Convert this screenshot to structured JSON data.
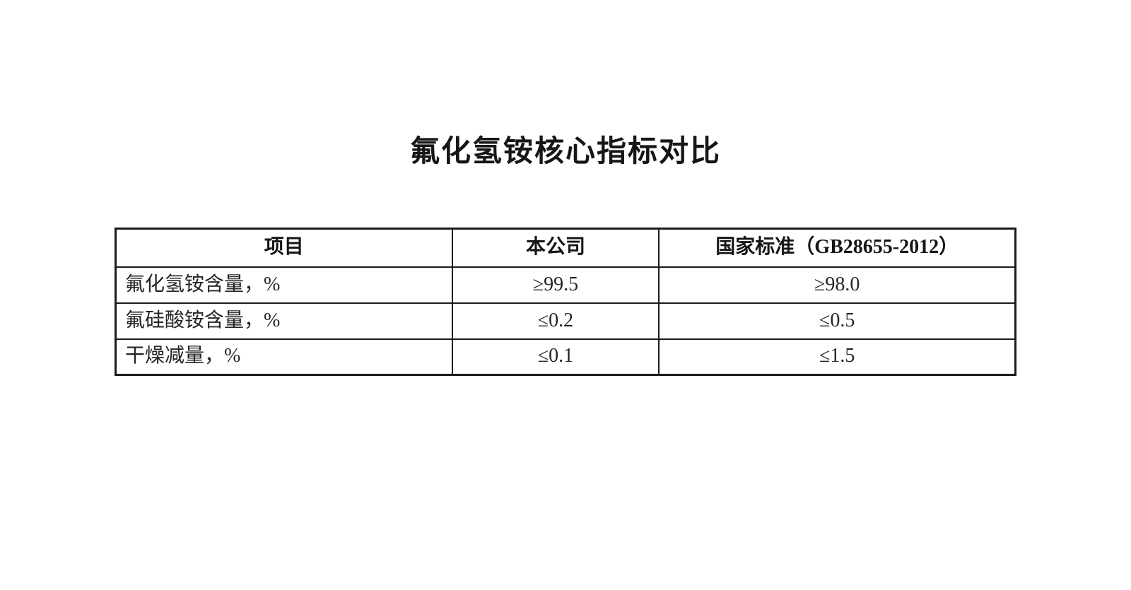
{
  "document": {
    "title": "氟化氢铵核心指标对比"
  },
  "table": {
    "columns": [
      "项目",
      "本公司",
      "国家标准（GB28655-2012）"
    ],
    "rows": [
      [
        "氟化氢铵含量，%",
        "≥99.5",
        "≥98.0"
      ],
      [
        "氟硅酸铵含量，%",
        "≤0.2",
        "≤0.5"
      ],
      [
        "干燥减量，%",
        "≤0.1",
        "≤1.5"
      ]
    ]
  },
  "colors": {
    "text": "#1a1a1a",
    "border": "#1a1a1a",
    "background": "#ffffff"
  }
}
